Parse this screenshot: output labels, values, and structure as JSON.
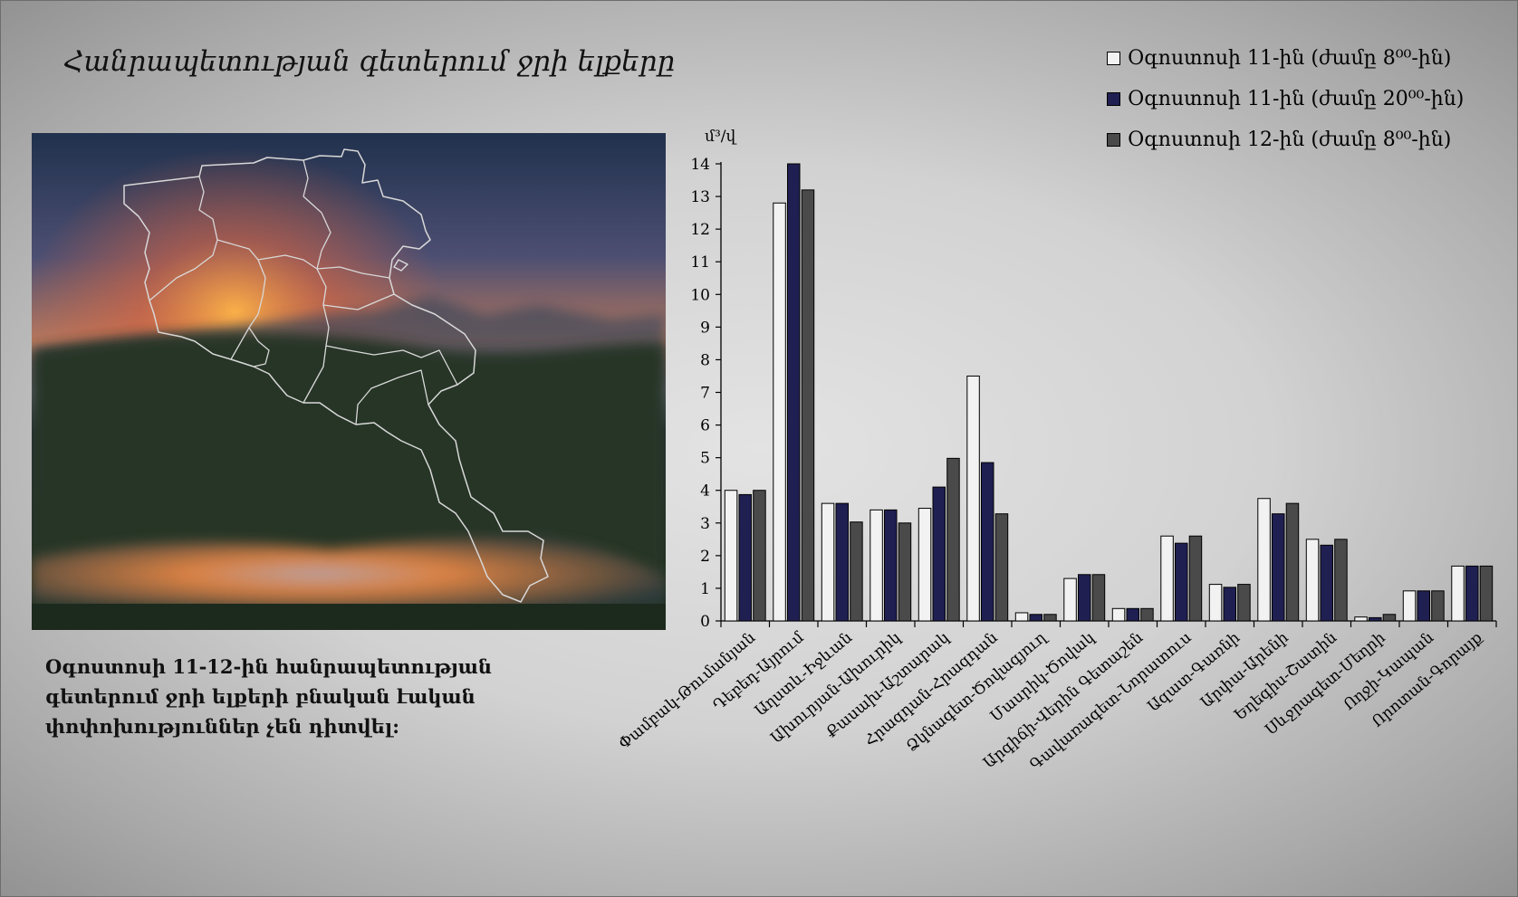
{
  "title": "Հանրապետության գետերում ջրի ելքերը",
  "caption": "Օգոստոսի 11-12-ին հանրապետության գետերում ջրի ելքերի բնական էական փոփոխություններ չեն դիտվել:",
  "chart_data": {
    "type": "bar",
    "title": "",
    "xlabel": "",
    "ylabel": "մ³/վ",
    "ylim": [
      0,
      14
    ],
    "yticks": [
      0,
      1,
      2,
      3,
      4,
      5,
      6,
      7,
      8,
      9,
      10,
      11,
      12,
      13,
      14
    ],
    "grid": false,
    "legend_position": "top-right",
    "categories": [
      "Փամբակ-Թումանյան",
      "Դեբեդ-Այրում",
      "Աղստև-Իջևան",
      "Ախուրյան-Ախուրիկ",
      "Քասախ-Աշտարակ",
      "Հրազդան-Հրազդան",
      "Ձկնագետ-Ծովագյուղ",
      "Մասրիկ-Ծովակ",
      "Արգիճի-Վերին Գետաշեն",
      "Գավառագետ-Նորատուս",
      "Ազատ-Գառնի",
      "Արփա-Արենի",
      "Եղեգիս-Շատին",
      "Սևջրագետ-Մեղրի",
      "Ողջի-Կապան",
      "Որոտան-Գորայք"
    ],
    "series": [
      {
        "name": "Օգոստոսի 11-ին (ժամը 8⁰⁰-ին)",
        "color": "#f2f2f2",
        "values": [
          4.0,
          12.8,
          3.6,
          3.4,
          3.45,
          7.5,
          0.25,
          1.3,
          0.38,
          2.6,
          1.12,
          3.75,
          2.5,
          0.12,
          0.92,
          1.68
        ]
      },
      {
        "name": "Օգոստոսի 11-ին (ժամը 20⁰⁰-ին)",
        "color": "#1f1f52",
        "values": [
          3.87,
          14.0,
          3.6,
          3.4,
          4.1,
          4.85,
          0.2,
          1.42,
          0.38,
          2.38,
          1.03,
          3.28,
          2.32,
          0.1,
          0.92,
          1.68
        ]
      },
      {
        "name": "Օգոստոսի 12-ին (ժամը 8⁰⁰-ին)",
        "color": "#4a4a4a",
        "values": [
          4.0,
          13.2,
          3.03,
          3.0,
          4.98,
          3.28,
          0.2,
          1.42,
          0.38,
          2.6,
          1.12,
          3.6,
          2.5,
          0.2,
          0.92,
          1.68
        ]
      }
    ]
  }
}
